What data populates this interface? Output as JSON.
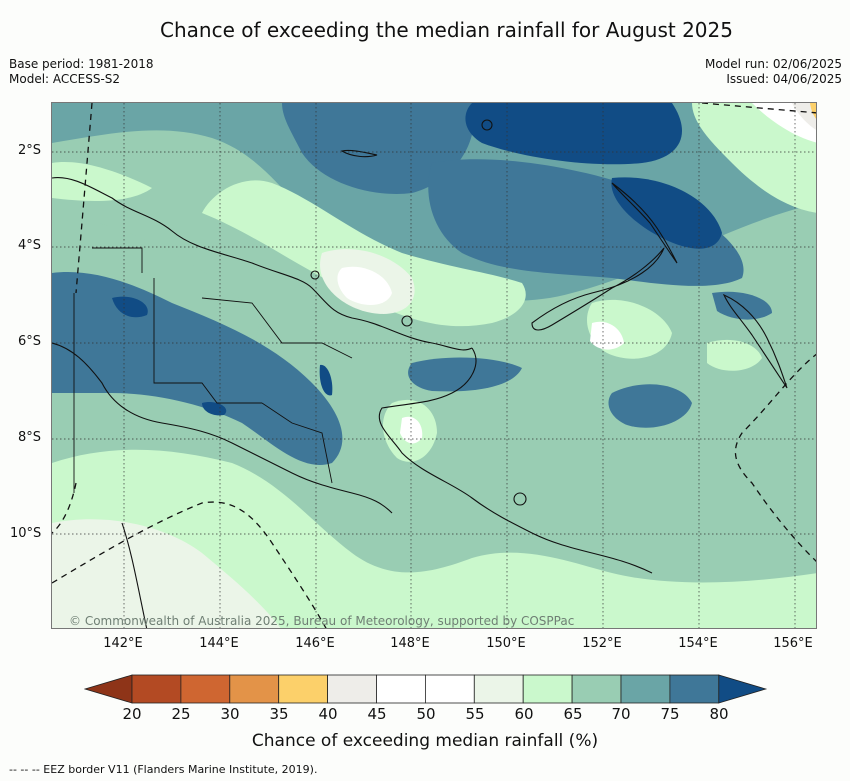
{
  "title": "Chance of exceeding the median rainfall for August 2025",
  "meta": {
    "base_period": "Base period: 1981-2018",
    "model": "Model: ACCESS-S2",
    "model_run": "Model run: 02/06/2025",
    "issued": "Issued: 04/06/2025"
  },
  "map": {
    "lat_labels": [
      "2°S",
      "4°S",
      "6°S",
      "8°S",
      "10°S"
    ],
    "lon_labels": [
      "142°E",
      "144°E",
      "146°E",
      "148°E",
      "150°E",
      "152°E",
      "154°E",
      "156°E"
    ],
    "copyright": "© Commonwealth of Australia 2025, Bureau of Meteorology, supported by COSPPac"
  },
  "colorbar": {
    "ticks": [
      "20",
      "25",
      "30",
      "35",
      "40",
      "45",
      "50",
      "55",
      "60",
      "65",
      "70",
      "75",
      "80"
    ],
    "label": "Chance of exceeding median rainfall (%)",
    "colors": {
      "below_20": "#8e3418",
      "20_25": "#b34a23",
      "25_30": "#cf6631",
      "30_35": "#e39348",
      "35_40": "#fcd06a",
      "40_45": "#eeede9",
      "45_50": "#ffffff",
      "50_55": "#ffffff",
      "55_60": "#ebf5e8",
      "60_65": "#caf8cc",
      "65_70": "#99cdb3",
      "70_75": "#6aa5a6",
      "75_80": "#3f7798",
      "above_80": "#114c85"
    }
  },
  "footer": "--  --  -- EEZ border V11 (Flanders Marine Institute, 2019)."
}
